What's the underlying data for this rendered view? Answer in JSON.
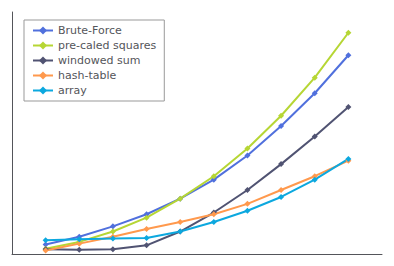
{
  "chart_data": {
    "type": "line",
    "x": [
      1,
      2,
      3,
      4,
      5,
      6,
      7,
      8,
      9,
      10
    ],
    "series": [
      {
        "name": "Brute-Force",
        "marker": "diamond",
        "values": [
          0.55,
          1.0,
          1.6,
          2.3,
          3.2,
          4.3,
          5.7,
          7.4,
          9.3,
          11.5
        ]
      },
      {
        "name": "pre-caled squares",
        "marker": "diamond",
        "values": [
          0.3,
          0.7,
          1.3,
          2.1,
          3.2,
          4.5,
          6.1,
          8.0,
          10.2,
          12.8
        ]
      },
      {
        "name": "windowed sum",
        "marker": "diamond",
        "values": [
          0.28,
          0.25,
          0.28,
          0.5,
          1.3,
          2.4,
          3.7,
          5.2,
          6.8,
          8.5
        ]
      },
      {
        "name": "hash-table",
        "marker": "diamond",
        "values": [
          0.2,
          0.6,
          1.0,
          1.45,
          1.85,
          2.3,
          2.9,
          3.7,
          4.5,
          5.4
        ]
      },
      {
        "name": "array",
        "marker": "diamond",
        "values": [
          0.8,
          0.85,
          0.9,
          0.92,
          1.3,
          1.85,
          2.5,
          3.3,
          4.3,
          5.5
        ]
      }
    ],
    "xlim": [
      0,
      11
    ],
    "ylim": [
      0,
      14
    ],
    "tick_labels": false,
    "grid": false,
    "legend": "upper left"
  }
}
